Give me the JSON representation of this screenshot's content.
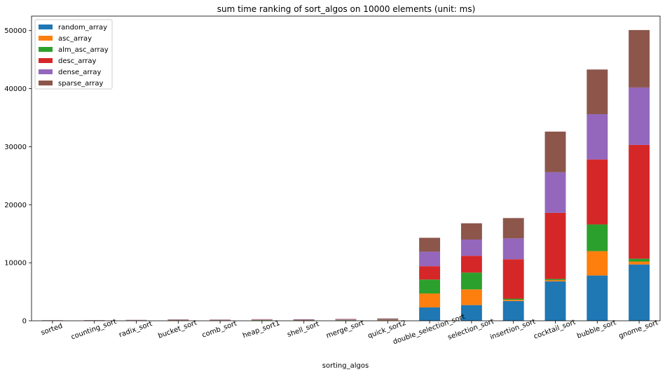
{
  "chart_data": {
    "type": "bar",
    "stacked": true,
    "title": "sum time ranking of sort_algos on 10000 elements (unit: ms)",
    "xlabel": "sorting_algos",
    "ylabel": "",
    "ylim": [
      0,
      52500
    ],
    "yticks": [
      0,
      10000,
      20000,
      30000,
      40000,
      50000
    ],
    "grid": false,
    "legend_position": "top-left",
    "categories": [
      "sorted",
      "counting_sort",
      "radix_sort",
      "bucket_sort",
      "comb_sort",
      "heap_sort1",
      "shell_sort",
      "merge_sort",
      "quick_sort2",
      "double_selection_sort",
      "selection_sort",
      "insertion_sort",
      "cocktail_sort",
      "bubble_sort",
      "gnome_sort"
    ],
    "series": [
      {
        "name": "random_array",
        "color": "#1f77b4",
        "values": [
          20,
          40,
          30,
          60,
          50,
          60,
          60,
          70,
          80,
          2300,
          2700,
          3400,
          6800,
          7800,
          9700
        ]
      },
      {
        "name": "asc_array",
        "color": "#ff7f0e",
        "values": [
          10,
          10,
          20,
          20,
          20,
          30,
          20,
          30,
          50,
          2400,
          2700,
          200,
          200,
          4200,
          500
        ]
      },
      {
        "name": "alm_asc_array",
        "color": "#2ca02c",
        "values": [
          10,
          10,
          20,
          20,
          20,
          30,
          20,
          30,
          50,
          2400,
          2900,
          200,
          200,
          4600,
          500
        ]
      },
      {
        "name": "desc_array",
        "color": "#d62728",
        "values": [
          10,
          10,
          20,
          20,
          20,
          30,
          20,
          30,
          50,
          2300,
          2900,
          6800,
          11400,
          11200,
          19600
        ]
      },
      {
        "name": "dense_array",
        "color": "#9467bd",
        "values": [
          20,
          20,
          30,
          50,
          50,
          60,
          60,
          70,
          80,
          2500,
          2800,
          3600,
          7000,
          7800,
          9900
        ]
      },
      {
        "name": "sparse_array",
        "color": "#8c564b",
        "values": [
          20,
          20,
          30,
          60,
          50,
          60,
          70,
          80,
          90,
          2400,
          2800,
          3500,
          7000,
          7700,
          9900
        ]
      }
    ]
  }
}
